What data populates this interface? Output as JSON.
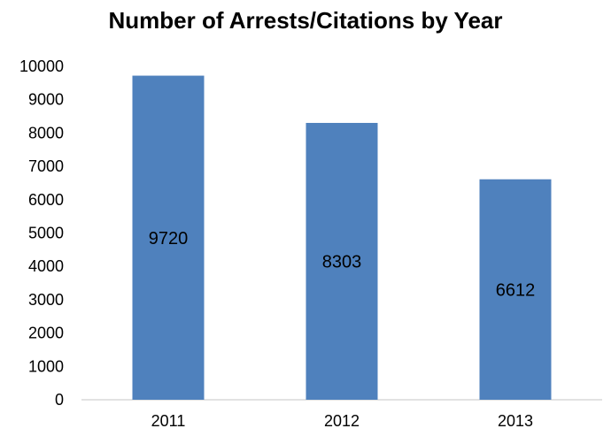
{
  "chart_data": {
    "type": "bar",
    "title": "Number of Arrests/Citations by Year",
    "categories": [
      "2011",
      "2012",
      "2013"
    ],
    "values": [
      9720,
      8303,
      6612
    ],
    "data_labels": [
      "9720",
      "8303",
      "6612"
    ],
    "yticks": [
      "0",
      "1000",
      "2000",
      "3000",
      "4000",
      "5000",
      "6000",
      "7000",
      "8000",
      "9000",
      "10000"
    ],
    "xlabel": "",
    "ylabel": "",
    "ylim": [
      0,
      10000
    ],
    "grid": false,
    "legend": "none",
    "bar_color": "#4F81BD",
    "axis_color": "#D9D9D9"
  }
}
